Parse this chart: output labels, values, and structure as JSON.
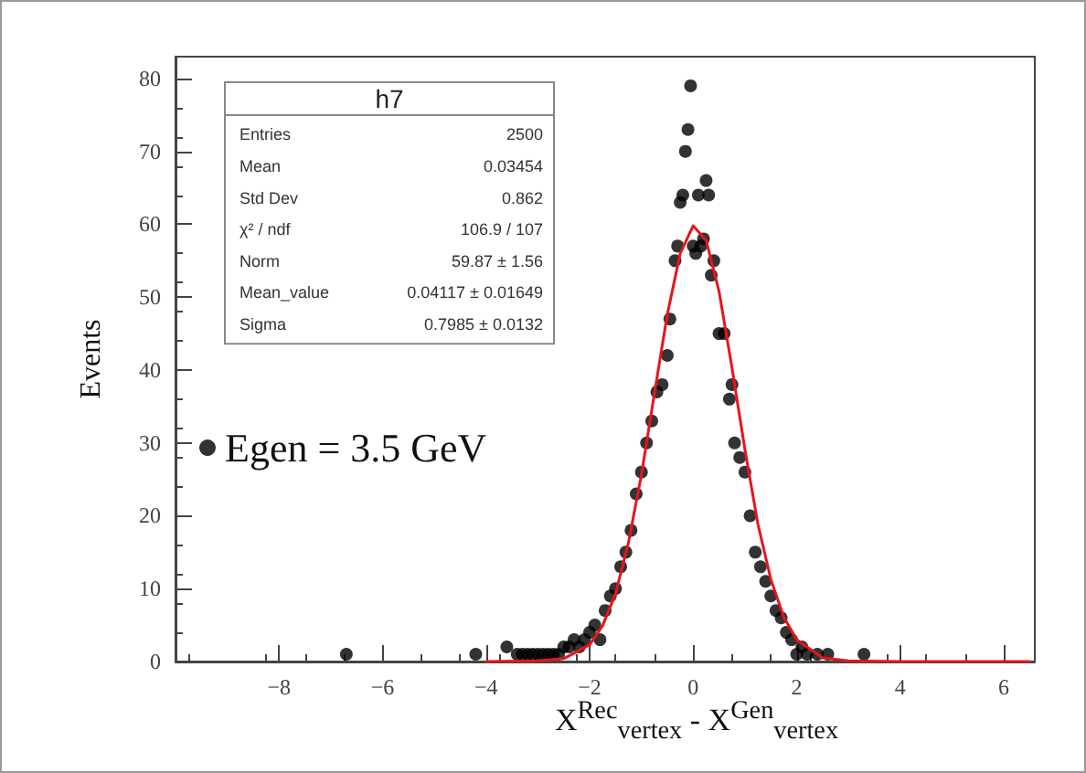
{
  "chart_data": {
    "type": "scatter",
    "xlabel": "X$^{Rec}$$_{vertex}$ - X$^{Gen}$$_{vertex}$",
    "ylabel": "Events",
    "xlim": [
      -10,
      6.6
    ],
    "xticks": [
      -8,
      -6,
      -4,
      -2,
      0,
      2,
      4,
      6
    ],
    "ylim": [
      0,
      83
    ],
    "yticks": [
      0,
      10,
      20,
      30,
      40,
      50,
      60,
      70,
      80
    ],
    "grid": false,
    "legend": "left",
    "annotations": [
      "h7",
      "Entries\t2500",
      "Mean\t0.03454",
      "Std Dev\t0.862",
      "χ² / ndf\t106.9 / 107",
      "Norm\t59.87 ± 1.56",
      "Mean_value\t0.04117 ± 0.01649",
      "Sigma\t0.7985 ± 0.0132"
    ],
    "series": [
      {
        "name": "Egen = 3.5 GeV",
        "marker": "circle",
        "color": "#000000",
        "x": [
          -6.7,
          -4.2,
          -3.6,
          -3.4,
          -3.3,
          -3.2,
          -3.1,
          -3.0,
          -2.9,
          -2.8,
          -2.7,
          -2.6,
          -2.5,
          -2.4,
          -2.3,
          -2.2,
          -2.1,
          -2.0,
          -1.9,
          -1.8,
          -1.7,
          -1.6,
          -1.5,
          -1.4,
          -1.3,
          -1.2,
          -1.1,
          -1.0,
          -0.9,
          -0.8,
          -0.7,
          -0.6,
          -0.5,
          -0.45,
          -0.35,
          -0.3,
          -0.25,
          -0.2,
          -0.15,
          -0.1,
          -0.05,
          0.0,
          0.05,
          0.1,
          0.15,
          0.2,
          0.25,
          0.3,
          0.35,
          0.4,
          0.5,
          0.6,
          0.7,
          0.75,
          0.8,
          0.9,
          1.0,
          1.1,
          1.2,
          1.3,
          1.4,
          1.5,
          1.6,
          1.7,
          1.8,
          1.9,
          2.0,
          2.1,
          2.2,
          2.4,
          2.6,
          3.3
        ],
        "values": [
          1,
          1,
          2,
          1,
          1,
          1,
          1,
          1,
          1,
          1,
          1,
          1,
          2,
          2,
          3,
          2,
          3,
          4,
          5,
          3,
          7,
          9,
          10,
          13,
          15,
          18,
          23,
          26,
          30,
          33,
          37,
          38,
          42,
          47,
          55,
          57,
          63,
          64,
          70,
          73,
          79,
          57,
          56,
          64,
          57,
          58,
          66,
          64,
          53,
          55,
          45,
          45,
          36,
          38,
          30,
          28,
          26,
          20,
          15,
          13,
          11,
          9,
          7,
          6,
          4,
          3,
          1,
          2,
          1,
          1,
          1,
          1
        ]
      },
      {
        "type": "line",
        "marker": "none",
        "line_style": "solid",
        "color": "#e8141c",
        "x": [
          -4,
          -3,
          -2.5,
          -2,
          -1.75,
          -1.5,
          -1.25,
          -1,
          -0.75,
          -0.5,
          -0.25,
          0,
          0.25,
          0.5,
          0.75,
          1,
          1.25,
          1.5,
          1.75,
          2,
          2.5,
          3,
          4,
          6.5
        ],
        "values": [
          0,
          0.1,
          0.4,
          2.3,
          4.9,
          9.3,
          16.3,
          25.6,
          36.7,
          47.6,
          56,
          59.8,
          57.8,
          50.8,
          40.3,
          29.1,
          18.9,
          11.3,
          6.1,
          3,
          0.5,
          0.1,
          0,
          0
        ]
      }
    ]
  }
}
